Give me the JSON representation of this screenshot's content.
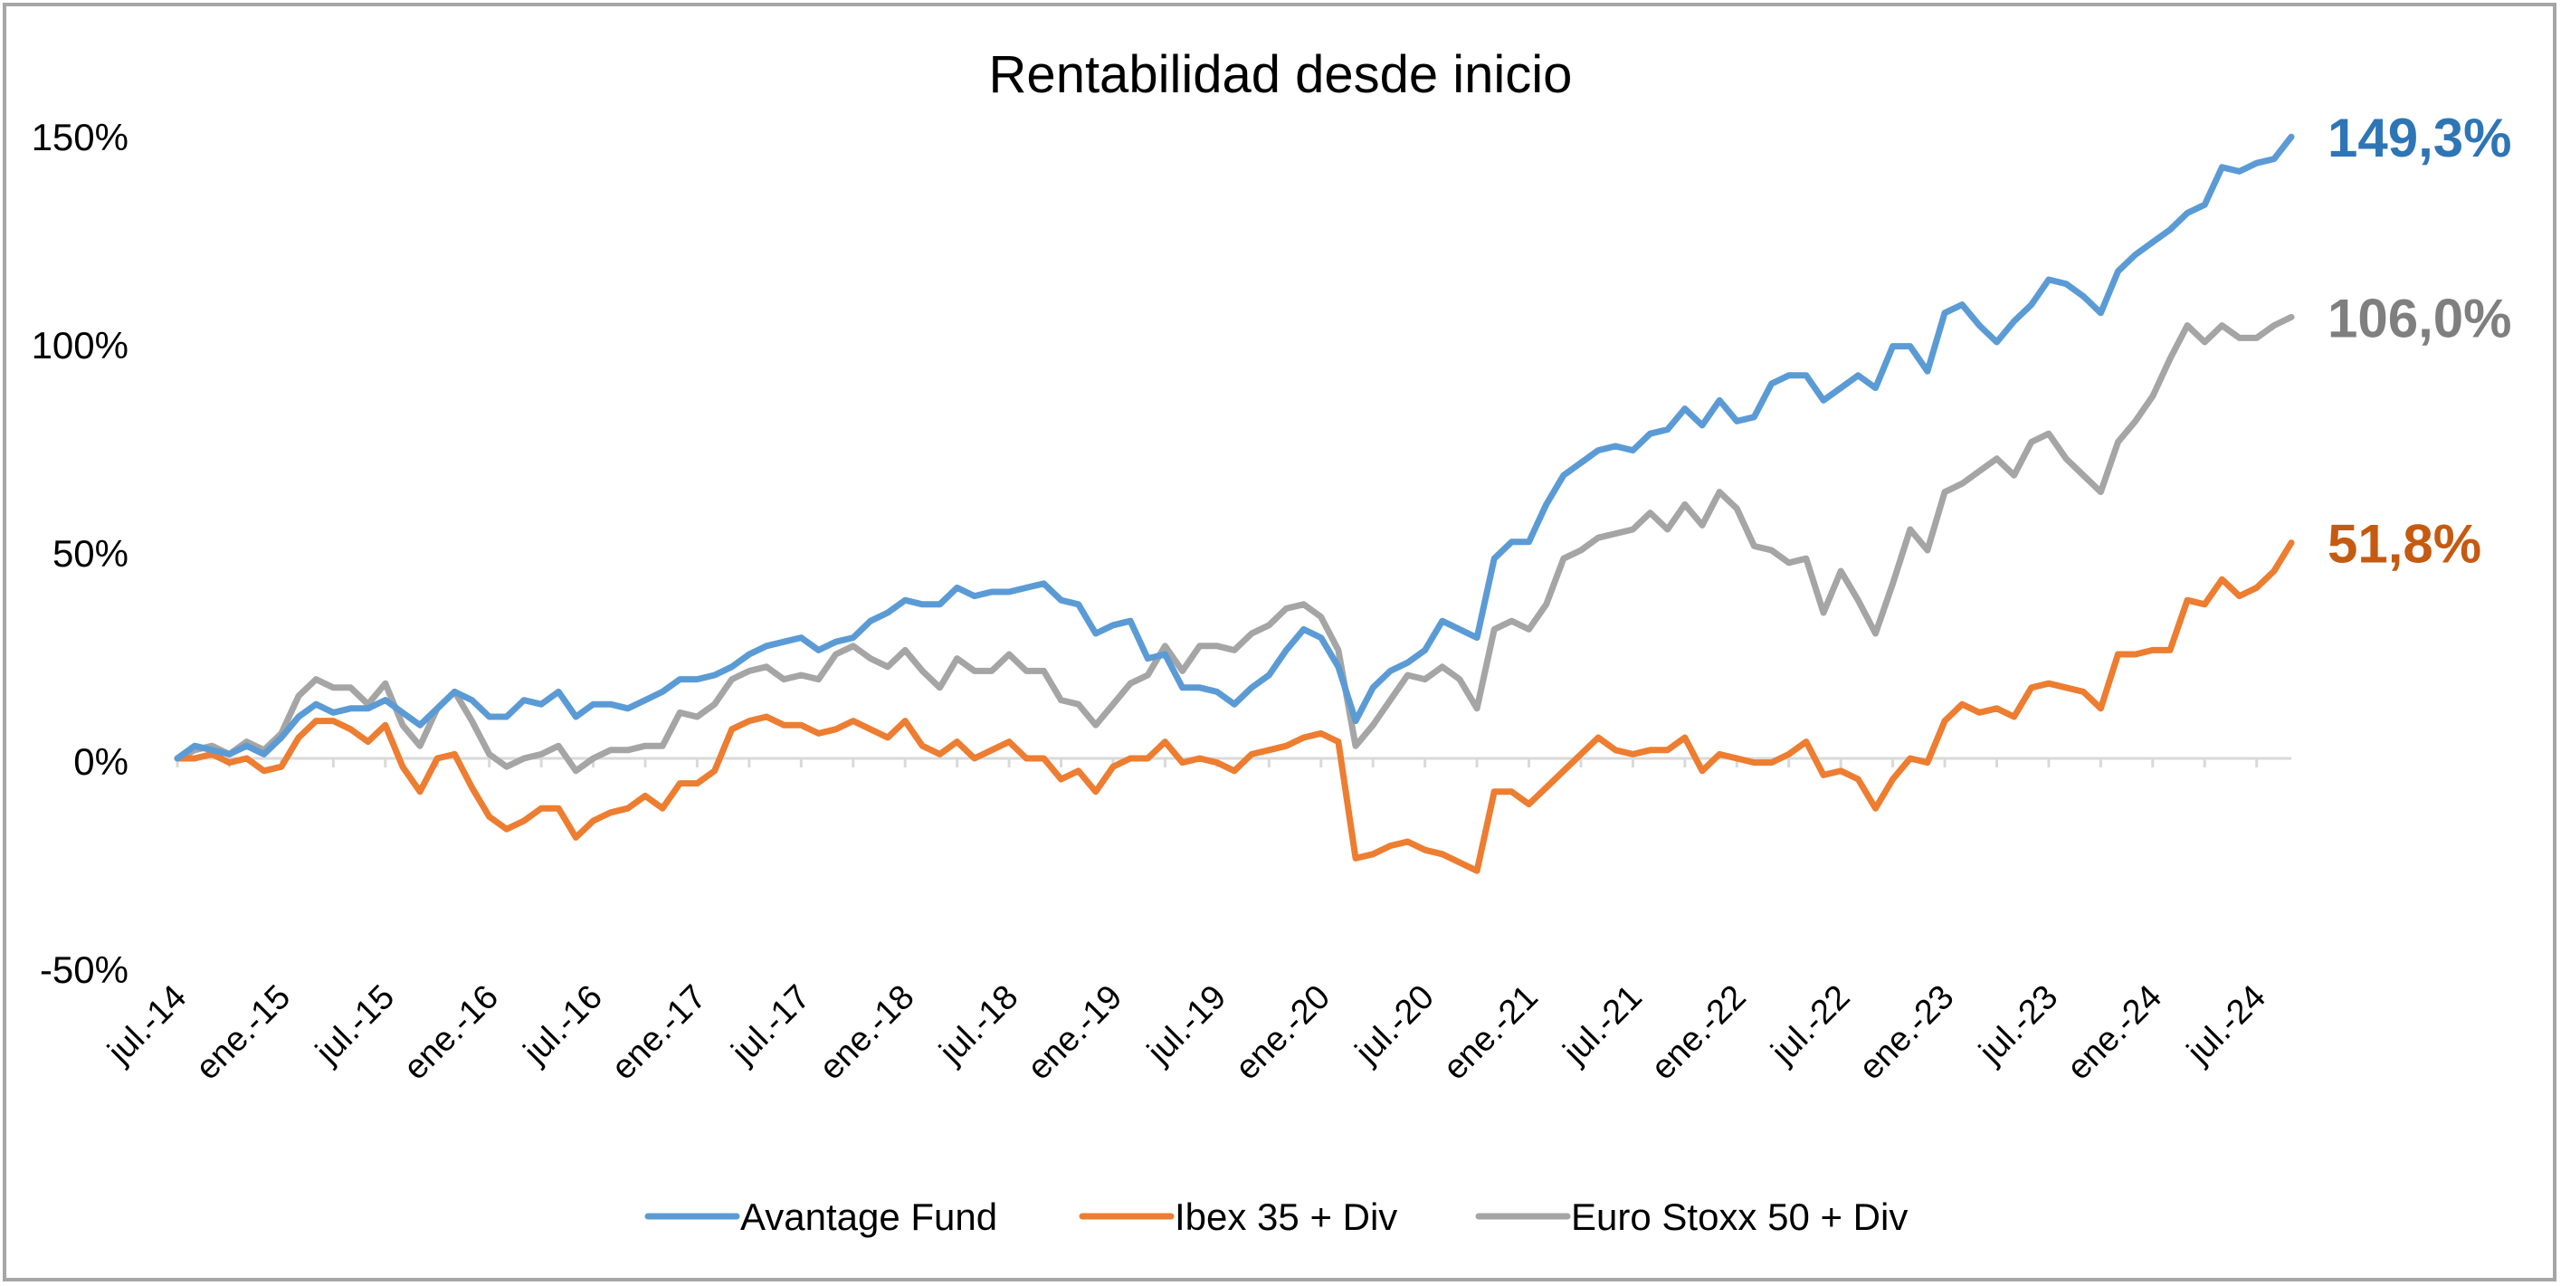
{
  "chart_data": {
    "type": "line",
    "title": "Rentabilidad desde inicio",
    "xlabel": "",
    "ylabel": "",
    "ylim": [
      -50,
      150
    ],
    "y_ticks": [
      150,
      100,
      50,
      0,
      -50
    ],
    "y_tick_labels": [
      "150%",
      "100%",
      "50%",
      "0%",
      "-50%"
    ],
    "grid": false,
    "legend_position": "bottom",
    "x_start": "jul.-14",
    "x_end": "oct.-24",
    "x_tick_labels": [
      "jul.-14",
      "ene.-15",
      "jul.-15",
      "ene.-16",
      "jul.-16",
      "ene.-17",
      "jul.-17",
      "ene.-18",
      "jul.-18",
      "ene.-19",
      "jul.-19",
      "ene.-20",
      "jul.-20",
      "ene.-21",
      "jul.-21",
      "ene.-22",
      "jul.-22",
      "ene.-23",
      "jul.-23",
      "ene.-24",
      "jul.-24"
    ],
    "series": [
      {
        "name": "Avantage Fund",
        "color": "#5B9BD5",
        "end_label": "149,3%",
        "end_label_color": "#2E75B6",
        "values": [
          0,
          3,
          2,
          1,
          3,
          1,
          5,
          10,
          13,
          11,
          12,
          12,
          14,
          11,
          8,
          12,
          16,
          14,
          10,
          10,
          14,
          13,
          16,
          10,
          13,
          13,
          12,
          14,
          16,
          19,
          19,
          20,
          22,
          25,
          27,
          28,
          29,
          26,
          28,
          29,
          33,
          35,
          38,
          37,
          37,
          41,
          39,
          40,
          40,
          41,
          42,
          38,
          37,
          30,
          32,
          33,
          24,
          25,
          17,
          17,
          16,
          13,
          17,
          20,
          26,
          31,
          29,
          22,
          9,
          17,
          21,
          23,
          26,
          33,
          31,
          29,
          48,
          52,
          52,
          61,
          68,
          71,
          74,
          75,
          74,
          78,
          79,
          84,
          80,
          86,
          81,
          82,
          90,
          92,
          92,
          86,
          89,
          92,
          89,
          99,
          99,
          93,
          107,
          109,
          104,
          100,
          105,
          109,
          115,
          114,
          111,
          107,
          117,
          121,
          124,
          127,
          131,
          133,
          142,
          141,
          143,
          144,
          149.3
        ]
      },
      {
        "name": "Ibex 35 + Div",
        "color": "#ED7D31",
        "end_label": "51,8%",
        "end_label_color": "#C55A11",
        "values": [
          0,
          0,
          1,
          -1,
          0,
          -3,
          -2,
          5,
          9,
          9,
          7,
          4,
          8,
          -2,
          -8,
          0,
          1,
          -7,
          -14,
          -17,
          -15,
          -12,
          -12,
          -19,
          -15,
          -13,
          -12,
          -9,
          -12,
          -6,
          -6,
          -3,
          7,
          9,
          10,
          8,
          8,
          6,
          7,
          9,
          7,
          5,
          9,
          3,
          1,
          4,
          0,
          2,
          4,
          0,
          0,
          -5,
          -3,
          -8,
          -2,
          0,
          0,
          4,
          -1,
          0,
          -1,
          -3,
          1,
          2,
          3,
          5,
          6,
          4,
          -24,
          -23,
          -21,
          -20,
          -22,
          -23,
          -25,
          -27,
          -8,
          -8,
          -11,
          -7,
          -3,
          1,
          5,
          2,
          1,
          2,
          2,
          5,
          -3,
          1,
          0,
          -1,
          -1,
          1,
          4,
          -4,
          -3,
          -5,
          -12,
          -5,
          0,
          -1,
          9,
          13,
          11,
          12,
          10,
          17,
          18,
          17,
          16,
          12,
          25,
          25,
          26,
          26,
          38,
          37,
          43,
          39,
          41,
          45,
          51.8
        ]
      },
      {
        "name": "Euro Stoxx 50 + Div",
        "color": "#A5A5A5",
        "end_label": "106,0%",
        "end_label_color": "#7F7F7F",
        "values": [
          0,
          2,
          3,
          1,
          4,
          2,
          6,
          15,
          19,
          17,
          17,
          13,
          18,
          8,
          3,
          12,
          16,
          9,
          1,
          -2,
          0,
          1,
          3,
          -3,
          0,
          2,
          2,
          3,
          3,
          11,
          10,
          13,
          19,
          21,
          22,
          19,
          20,
          19,
          25,
          27,
          24,
          22,
          26,
          21,
          17,
          24,
          21,
          21,
          25,
          21,
          21,
          14,
          13,
          8,
          13,
          18,
          20,
          27,
          21,
          27,
          27,
          26,
          30,
          32,
          36,
          37,
          34,
          26,
          3,
          8,
          14,
          20,
          19,
          22,
          19,
          12,
          31,
          33,
          31,
          37,
          48,
          50,
          53,
          54,
          55,
          59,
          55,
          61,
          56,
          64,
          60,
          51,
          50,
          47,
          48,
          35,
          45,
          38,
          30,
          42,
          55,
          50,
          64,
          66,
          69,
          72,
          68,
          76,
          78,
          72,
          68,
          64,
          76,
          81,
          87,
          96,
          104,
          100,
          104,
          101,
          101,
          104,
          106.0
        ]
      }
    ]
  }
}
